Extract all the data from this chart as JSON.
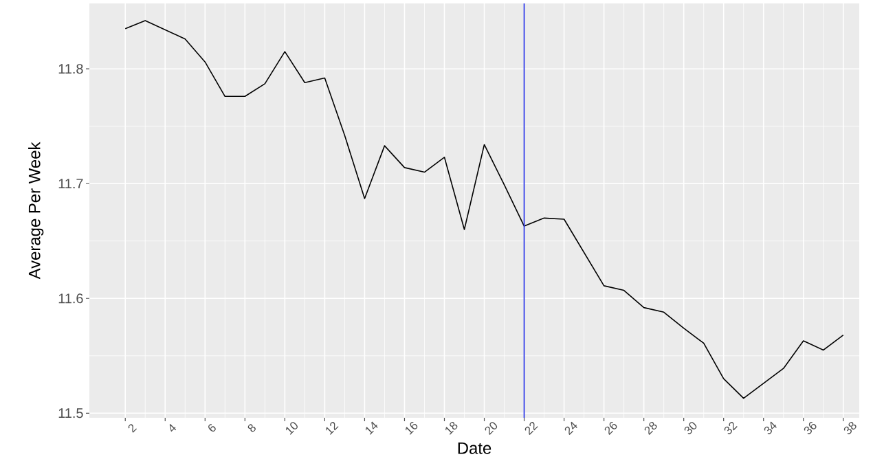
{
  "chart_data": {
    "type": "line",
    "xlabel": "Date",
    "ylabel": "Average Per Week",
    "x": [
      2,
      3,
      4,
      5,
      6,
      7,
      8,
      9,
      10,
      11,
      12,
      13,
      14,
      15,
      16,
      17,
      18,
      19,
      20,
      21,
      22,
      23,
      24,
      25,
      26,
      27,
      28,
      29,
      30,
      31,
      32,
      33,
      34,
      35,
      36,
      37,
      38
    ],
    "series": [
      {
        "color": "#000000",
        "values": [
          11.835,
          11.842,
          11.834,
          11.826,
          11.806,
          11.776,
          11.776,
          11.787,
          11.815,
          11.788,
          11.792,
          11.742,
          11.687,
          11.733,
          11.714,
          11.71,
          11.723,
          11.66,
          11.734,
          11.699,
          11.663,
          11.67,
          11.669,
          11.64,
          11.611,
          11.607,
          11.592,
          11.588,
          11.574,
          11.561,
          11.53,
          11.513,
          11.526,
          11.539,
          11.563,
          11.555,
          11.568
        ]
      }
    ],
    "xlim": [
      0.2,
      38.8
    ],
    "ylim": [
      11.496,
      11.857
    ],
    "xticks": [
      2,
      4,
      6,
      8,
      10,
      12,
      14,
      16,
      18,
      20,
      22,
      24,
      26,
      28,
      30,
      32,
      34,
      36,
      38
    ],
    "yticks": [
      11.5,
      11.6,
      11.7,
      11.8
    ],
    "grid": true,
    "ref_lines": [
      {
        "axis": "x",
        "value": 22,
        "color": "#2f3be6"
      }
    ]
  }
}
